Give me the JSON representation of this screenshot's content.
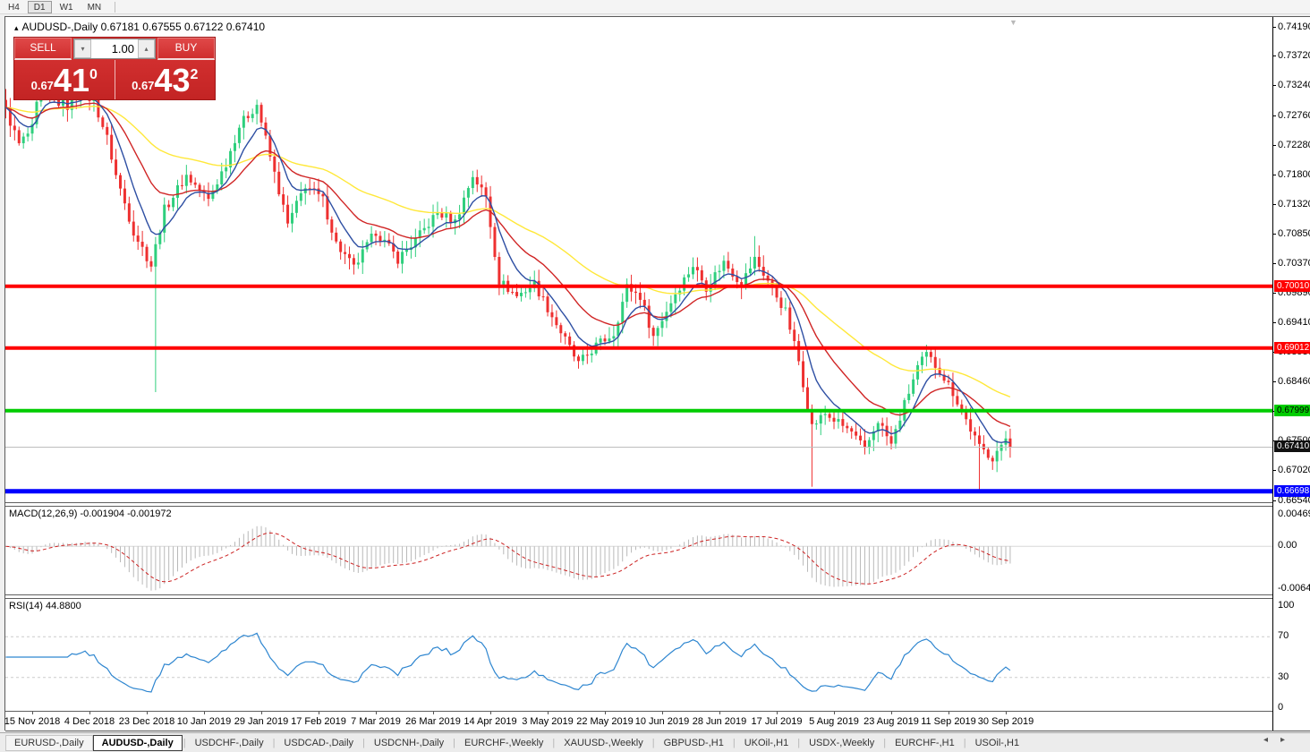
{
  "toolbar": {
    "timeframes": [
      {
        "label": "H4",
        "active": false
      },
      {
        "label": "D1",
        "active": true
      },
      {
        "label": "W1",
        "active": false
      },
      {
        "label": "MN",
        "active": false
      }
    ]
  },
  "chart": {
    "title_arrow": "▴",
    "symbol_title": "AUDUSD-,Daily",
    "ohlc_values": "0.67181 0.67555 0.67122 0.67410"
  },
  "trade_panel": {
    "sell_label": "SELL",
    "buy_label": "BUY",
    "volume": "1.00",
    "spin_down": "▾",
    "spin_up": "▴",
    "sell_price_small": "0.67",
    "sell_price_big": "41",
    "sell_price_sup": "0",
    "buy_price_small": "0.67",
    "buy_price_big": "43",
    "buy_price_sup": "2"
  },
  "indicators": {
    "macd": {
      "label": "MACD(12,26,9) -0.001904 -0.001972",
      "axis": [
        "0.004696",
        "0.00",
        "-0.006427"
      ]
    },
    "rsi": {
      "label": "RSI(14) 44.8800",
      "axis": [
        "100",
        "70",
        "30",
        "0"
      ]
    }
  },
  "chart_data": {
    "type": "candlestick",
    "symbol": "AUDUSD",
    "timeframe": "Daily",
    "num_candles": 229,
    "price_range": {
      "top": 0.7436,
      "bottom": 0.6652
    },
    "price_ticks": [
      "0.74190",
      "0.73720",
      "0.73240",
      "0.72760",
      "0.72280",
      "0.71800",
      "0.71320",
      "0.70850",
      "0.70370",
      "0.69890",
      "0.69410",
      "0.68930",
      "0.68460",
      "0.67980",
      "0.67500",
      "0.67020",
      "0.66540"
    ],
    "date_labels": [
      "15 Nov 2018",
      "4 Dec 2018",
      "23 Dec 2018",
      "10 Jan 2019",
      "29 Jan 2019",
      "17 Feb 2019",
      "7 Mar 2019",
      "26 Mar 2019",
      "14 Apr 2019",
      "3 May 2019",
      "22 May 2019",
      "10 Jun 2019",
      "28 Jun 2019",
      "17 Jul 2019",
      "5 Aug 2019",
      "23 Aug 2019",
      "11 Sep 2019",
      "30 Sep 2019"
    ],
    "close_waypoints": [
      [
        0,
        0.7285
      ],
      [
        3,
        0.723
      ],
      [
        6,
        0.7255
      ],
      [
        8,
        0.733
      ],
      [
        11,
        0.73
      ],
      [
        14,
        0.7292
      ],
      [
        17,
        0.7315
      ],
      [
        20,
        0.73
      ],
      [
        23,
        0.724
      ],
      [
        25,
        0.718
      ],
      [
        29,
        0.709
      ],
      [
        33,
        0.7035
      ],
      [
        36,
        0.7125
      ],
      [
        41,
        0.718
      ],
      [
        46,
        0.714
      ],
      [
        50,
        0.72
      ],
      [
        53,
        0.726
      ],
      [
        57,
        0.7295
      ],
      [
        60,
        0.721
      ],
      [
        64,
        0.71
      ],
      [
        68,
        0.7165
      ],
      [
        72,
        0.714
      ],
      [
        75,
        0.707
      ],
      [
        79,
        0.703
      ],
      [
        84,
        0.709
      ],
      [
        89,
        0.7045
      ],
      [
        93,
        0.7075
      ],
      [
        98,
        0.712
      ],
      [
        102,
        0.7105
      ],
      [
        106,
        0.718
      ],
      [
        109,
        0.7145
      ],
      [
        112,
        0.701
      ],
      [
        116,
        0.6985
      ],
      [
        120,
        0.7005
      ],
      [
        125,
        0.694
      ],
      [
        130,
        0.6875
      ],
      [
        134,
        0.6905
      ],
      [
        138,
        0.6925
      ],
      [
        141,
        0.7
      ],
      [
        144,
        0.6985
      ],
      [
        147,
        0.692
      ],
      [
        152,
        0.699
      ],
      [
        156,
        0.7035
      ],
      [
        159,
        0.7
      ],
      [
        163,
        0.704
      ],
      [
        167,
        0.7005
      ],
      [
        170,
        0.7045
      ],
      [
        173,
        0.701
      ],
      [
        177,
        0.696
      ],
      [
        180,
        0.688
      ],
      [
        183,
        0.6775
      ],
      [
        186,
        0.6795
      ],
      [
        189,
        0.678
      ],
      [
        192,
        0.6765
      ],
      [
        195,
        0.6735
      ],
      [
        198,
        0.6785
      ],
      [
        201,
        0.6745
      ],
      [
        204,
        0.681
      ],
      [
        207,
        0.687
      ],
      [
        209,
        0.689
      ],
      [
        212,
        0.6865
      ],
      [
        215,
        0.683
      ],
      [
        218,
        0.6785
      ],
      [
        221,
        0.674
      ],
      [
        224,
        0.6725
      ],
      [
        227,
        0.6755
      ],
      [
        228,
        0.6741
      ]
    ],
    "special_wicks": [
      {
        "i": 34,
        "low": 0.683
      },
      {
        "i": 170,
        "high": 0.7082
      },
      {
        "i": 183,
        "low": 0.6677
      },
      {
        "i": 221,
        "low": 0.667
      }
    ],
    "last_close": 0.6741,
    "h_lines": [
      {
        "price": 0.7001,
        "color": "#ff0000",
        "width": 4
      },
      {
        "price": 0.69012,
        "color": "#ff0000",
        "width": 4
      },
      {
        "price": 0.67999,
        "color": "#00cc00",
        "width": 4
      },
      {
        "price": 0.66698,
        "color": "#0000ff",
        "width": 5
      },
      {
        "price": 0.6741,
        "color": "#bdbdbd",
        "width": 1
      }
    ],
    "h_line_labels": [
      {
        "text": "0.70010",
        "price": 0.7001,
        "bg": "#ff0000",
        "fg": "#ffffff"
      },
      {
        "text": "0.69012",
        "price": 0.69012,
        "bg": "#ff0000",
        "fg": "#ffffff"
      },
      {
        "text": "0.67999",
        "price": 0.67999,
        "bg": "#00cc00",
        "fg": "#000000"
      },
      {
        "text": "0.67410",
        "price": 0.6741,
        "bg": "#111111",
        "fg": "#ffffff"
      },
      {
        "text": "0.66698",
        "price": 0.66698,
        "bg": "#0000ff",
        "fg": "#ffffff"
      }
    ],
    "moving_averages": [
      {
        "period": 8,
        "color": "#2e4fa3"
      },
      {
        "period": 21,
        "color": "#d02525"
      },
      {
        "period": 55,
        "color": "#ffe83a"
      }
    ],
    "macd": {
      "fast": 12,
      "slow": 26,
      "signal": 9,
      "range": [
        -0.006427,
        0.004696
      ],
      "hist_color": "#b9b9b9",
      "signal_color": "#cc2222",
      "current_values": [
        -0.001904,
        -0.001972
      ]
    },
    "rsi": {
      "period": 14,
      "current": 44.88,
      "levels": [
        70,
        30
      ],
      "range": [
        0,
        100
      ],
      "line_color": "#2e86d0"
    },
    "colors": {
      "candle_up": "#2fcf7d",
      "candle_down": "#ee3030"
    }
  },
  "tabs": {
    "items": [
      {
        "label": "EURUSD-,Daily",
        "active": false
      },
      {
        "label": "AUDUSD-,Daily",
        "active": true
      },
      {
        "label": "USDCHF-,Daily",
        "active": false
      },
      {
        "label": "USDCAD-,Daily",
        "active": false
      },
      {
        "label": "USDCNH-,Daily",
        "active": false
      },
      {
        "label": "EURCHF-,Weekly",
        "active": false
      },
      {
        "label": "XAUUSD-,Weekly",
        "active": false
      },
      {
        "label": "GBPUSD-,H1",
        "active": false
      },
      {
        "label": "UKOil-,H1",
        "active": false
      },
      {
        "label": "USDX-,Weekly",
        "active": false
      },
      {
        "label": "EURCHF-,H1",
        "active": false
      },
      {
        "label": "USOil-,H1",
        "active": false
      }
    ],
    "nav_left": "◂",
    "nav_right": "▸"
  }
}
